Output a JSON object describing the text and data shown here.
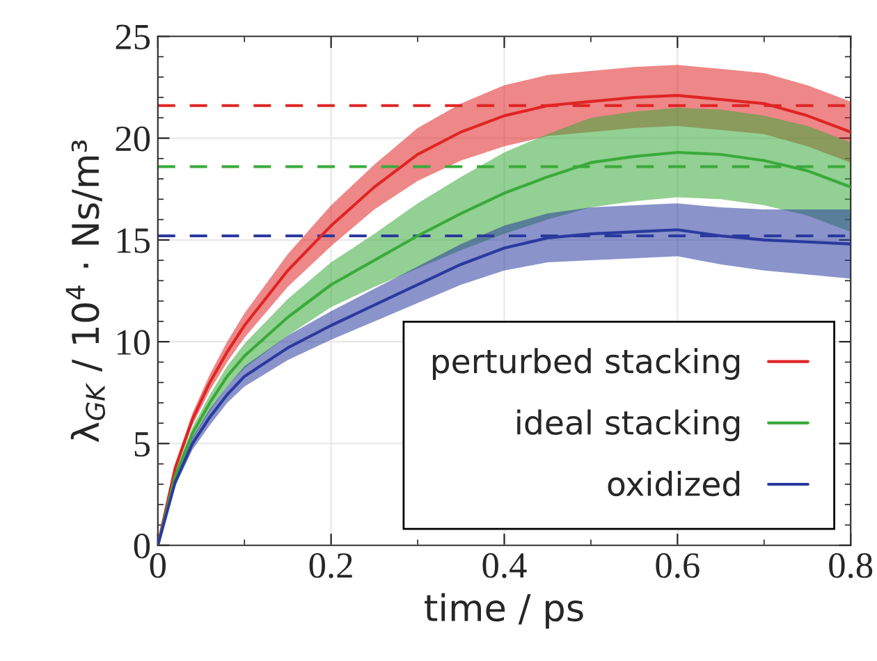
{
  "chart_data": {
    "type": "line",
    "xlabel": "time / ps",
    "ylabel": "λ$_{GK}$ / 10$^{4}$ · Ns/m³",
    "x": [
      0,
      0.02,
      0.04,
      0.06,
      0.08,
      0.1,
      0.15,
      0.2,
      0.25,
      0.3,
      0.35,
      0.4,
      0.45,
      0.5,
      0.55,
      0.6,
      0.65,
      0.7,
      0.75,
      0.8
    ],
    "series": [
      {
        "name": "perturbed stacking",
        "color": "#e02424",
        "values": [
          0,
          3.8,
          6.2,
          8.0,
          9.5,
          10.8,
          13.5,
          15.7,
          17.6,
          19.2,
          20.3,
          21.1,
          21.6,
          21.8,
          22.0,
          22.1,
          21.9,
          21.7,
          21.1,
          20.3
        ],
        "lower": [
          0,
          3.6,
          5.9,
          7.6,
          9.0,
          10.2,
          12.7,
          14.7,
          16.5,
          17.9,
          18.9,
          19.6,
          20.1,
          20.3,
          20.5,
          20.6,
          20.4,
          20.2,
          19.6,
          18.8
        ],
        "upper": [
          0,
          4.0,
          6.5,
          8.4,
          10.0,
          11.4,
          14.3,
          16.7,
          18.7,
          20.5,
          21.7,
          22.6,
          23.1,
          23.3,
          23.5,
          23.6,
          23.4,
          23.2,
          22.6,
          21.8
        ]
      },
      {
        "name": "ideal stacking",
        "color": "#3aaa3a",
        "values": [
          0,
          3.4,
          5.5,
          7.0,
          8.3,
          9.3,
          11.2,
          12.8,
          14.0,
          15.2,
          16.3,
          17.3,
          18.1,
          18.8,
          19.1,
          19.3,
          19.2,
          18.9,
          18.4,
          17.6
        ],
        "lower": [
          0,
          3.2,
          5.2,
          6.6,
          7.8,
          8.7,
          10.3,
          11.7,
          12.7,
          13.6,
          14.5,
          15.3,
          16.0,
          16.6,
          16.9,
          17.1,
          17.0,
          16.7,
          16.2,
          15.4
        ],
        "upper": [
          0,
          3.6,
          5.8,
          7.4,
          8.8,
          9.9,
          12.1,
          13.9,
          15.3,
          16.8,
          18.1,
          19.3,
          20.2,
          21.0,
          21.3,
          21.5,
          21.4,
          21.1,
          20.6,
          19.8
        ]
      },
      {
        "name": "oxidized",
        "color": "#2a3a9e",
        "values": [
          0,
          3.1,
          5.0,
          6.3,
          7.4,
          8.3,
          9.7,
          10.8,
          11.8,
          12.8,
          13.8,
          14.6,
          15.1,
          15.3,
          15.4,
          15.5,
          15.2,
          15.0,
          14.9,
          14.8
        ],
        "lower": [
          0,
          2.9,
          4.7,
          5.9,
          7.0,
          7.8,
          9.1,
          10.1,
          11.0,
          11.9,
          12.8,
          13.5,
          13.9,
          14.0,
          14.1,
          14.2,
          13.8,
          13.5,
          13.3,
          13.1
        ],
        "upper": [
          0,
          3.3,
          5.3,
          6.7,
          7.8,
          8.8,
          10.3,
          11.5,
          12.6,
          13.7,
          14.8,
          15.7,
          16.3,
          16.6,
          16.7,
          16.8,
          16.6,
          16.5,
          16.5,
          16.5
        ]
      }
    ],
    "ref_lines": [
      {
        "axis": "y",
        "value": 21.6,
        "color": "#e02424",
        "line_style": "dashed"
      },
      {
        "axis": "y",
        "value": 18.6,
        "color": "#3aaa3a",
        "line_style": "dashed"
      },
      {
        "axis": "y",
        "value": 15.2,
        "color": "#2a3a9e",
        "line_style": "dashed"
      }
    ],
    "xlim": [
      0,
      0.8
    ],
    "xticks": [
      0,
      0.2,
      0.4,
      0.6,
      0.8
    ],
    "ylim": [
      0,
      25
    ],
    "yticks": [
      0,
      5,
      10,
      15,
      20,
      25
    ],
    "grid": true,
    "legend": "bottom right",
    "line_style": "solid",
    "marker": "none"
  }
}
